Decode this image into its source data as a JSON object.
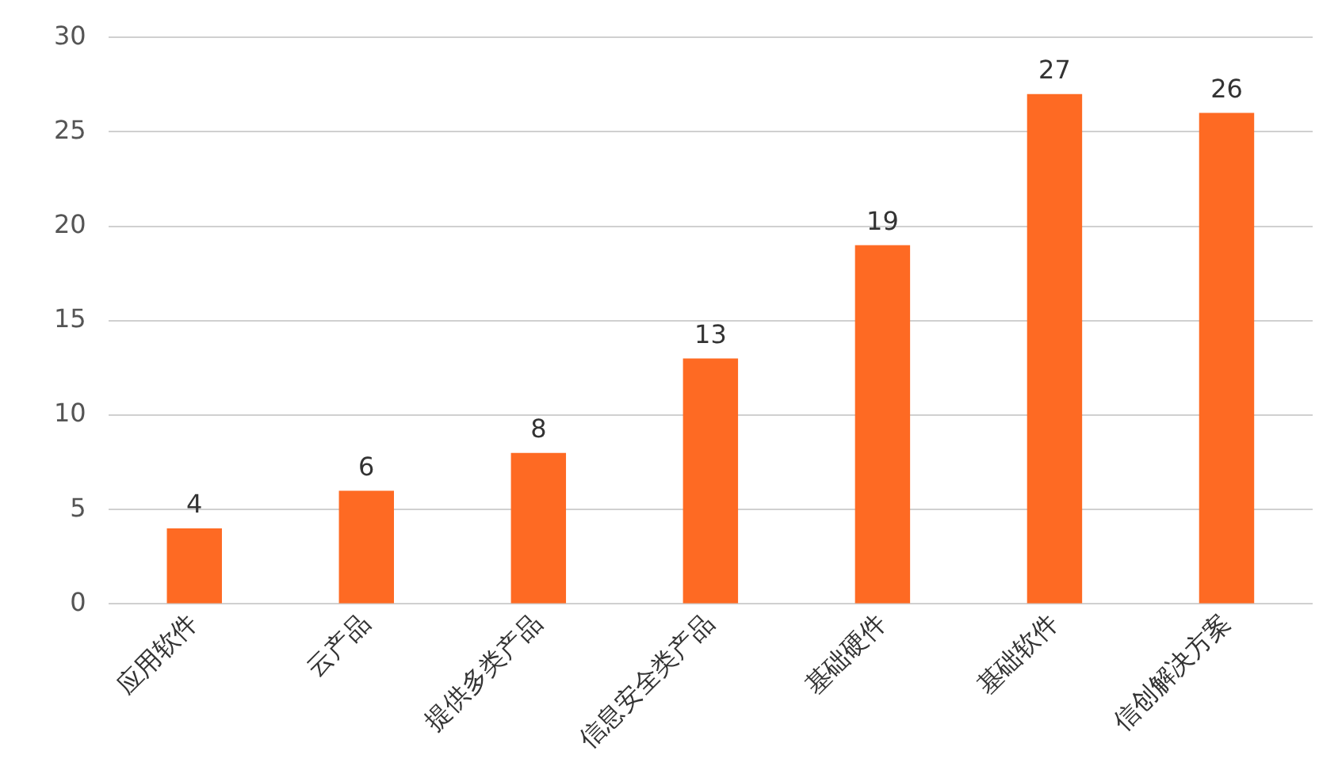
{
  "chart_data": {
    "type": "bar",
    "categories": [
      "应用软件",
      "云产品",
      "提供多类产品",
      "信息安全类产品",
      "基础硬件",
      "基础软件",
      "信创解决方案"
    ],
    "values": [
      4,
      6,
      8,
      13,
      19,
      27,
      26
    ],
    "color": "#fe6a23",
    "ylim": [
      0,
      30
    ],
    "yticks": [
      0,
      5,
      10,
      15,
      20,
      25,
      30
    ],
    "grid": "y",
    "data_labels": true
  }
}
